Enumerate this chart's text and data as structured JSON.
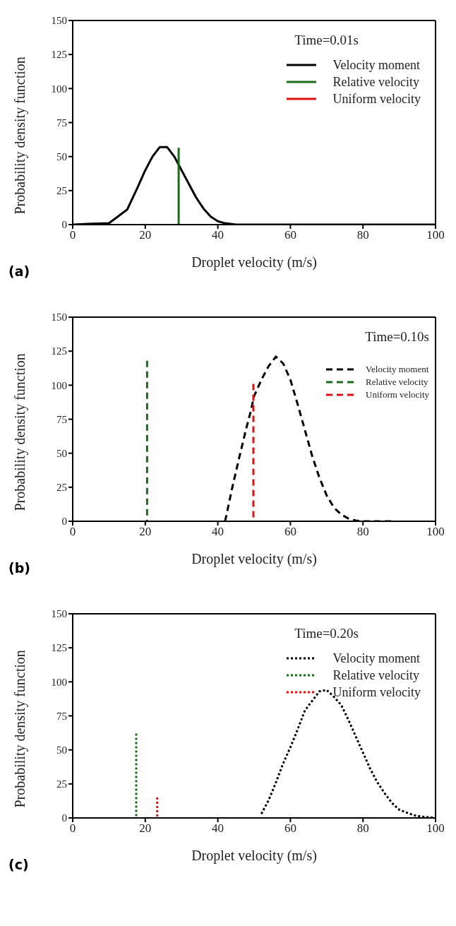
{
  "chart_data": [
    {
      "type": "line",
      "xlabel": "Droplet velocity (m/s)",
      "ylabel": "Probability density function",
      "xlim": [
        0,
        100
      ],
      "xticks": [
        0,
        20,
        40,
        60,
        80,
        100
      ],
      "ylim": [
        0,
        150
      ],
      "yticks": [
        0,
        25,
        50,
        75,
        100,
        125,
        150
      ],
      "grid": false,
      "legend": "top right",
      "marker": "none",
      "line_style": "solid",
      "annotations": [
        "Time=0.01s",
        "(a)"
      ],
      "series": [
        {
          "name": "Velocity moment",
          "color": "#000000",
          "x": [
            0,
            4,
            10,
            15,
            18,
            20,
            22,
            24,
            26,
            28,
            30,
            32,
            34,
            36,
            38,
            40,
            42,
            45,
            100
          ],
          "values": [
            0,
            0.5,
            1,
            11,
            28,
            40,
            50,
            57,
            57,
            50,
            40,
            30,
            20,
            12,
            6,
            2.5,
            1,
            0,
            0
          ]
        },
        {
          "name": "Relative velocity",
          "color": "#1a6b1a",
          "x": [
            29.2,
            29.2
          ],
          "values": [
            56.5,
            0
          ]
        },
        {
          "name": "Uniform velocity",
          "color": "#e01010"
        }
      ]
    },
    {
      "type": "line",
      "xlabel": "Droplet velocity (m/s)",
      "ylabel": "Probability density function",
      "xlim": [
        0,
        100
      ],
      "xticks": [
        0,
        20,
        40,
        60,
        80,
        100
      ],
      "ylim": [
        0,
        150
      ],
      "yticks": [
        0,
        25,
        50,
        75,
        100,
        125,
        150
      ],
      "grid": false,
      "legend": "top right",
      "marker": "none",
      "line_style": "dashed",
      "annotations": [
        "Time=0.10s",
        "(b)"
      ],
      "series": [
        {
          "name": "Velocity moment",
          "color": "#000000",
          "x": [
            42,
            44,
            46,
            48,
            49,
            50,
            52,
            54,
            56,
            58,
            60,
            62,
            64,
            66,
            68,
            70,
            72,
            74,
            76,
            78,
            80,
            88
          ],
          "values": [
            0,
            25,
            48,
            70,
            80,
            92,
            104,
            114,
            121,
            116,
            104,
            86,
            67,
            48,
            32,
            19,
            10,
            5,
            2,
            0.5,
            0,
            0
          ]
        },
        {
          "name": "Relative velocity",
          "color": "#1a6b1a",
          "x": [
            20.5,
            20.5
          ],
          "values": [
            118,
            0
          ]
        },
        {
          "name": "Uniform velocity",
          "color": "#e01010",
          "x": [
            49.8,
            49.8
          ],
          "values": [
            101,
            0
          ]
        }
      ]
    },
    {
      "type": "line",
      "xlabel": "Droplet velocity (m/s)",
      "ylabel": "Probability density function",
      "xlim": [
        0,
        100
      ],
      "xticks": [
        0,
        20,
        40,
        60,
        80,
        100
      ],
      "ylim": [
        0,
        150
      ],
      "yticks": [
        0,
        25,
        50,
        75,
        100,
        125,
        150
      ],
      "grid": false,
      "legend": "top right",
      "marker": "none",
      "line_style": "dotted",
      "annotations": [
        "Time=0.20s",
        "(c)"
      ],
      "series": [
        {
          "name": "Velocity moment",
          "color": "#000000",
          "x": [
            52,
            54,
            56,
            58,
            60,
            62,
            64,
            66,
            68,
            70,
            72,
            74,
            76,
            78,
            80,
            82,
            84,
            86,
            88,
            90,
            92,
            94,
            96,
            98,
            100
          ],
          "values": [
            3,
            13,
            26,
            40,
            52,
            65,
            79,
            86,
            93,
            94,
            89,
            83,
            72,
            60,
            48,
            36,
            26,
            18,
            11,
            6,
            4,
            2,
            1,
            0.5,
            0
          ]
        },
        {
          "name": "Relative velocity",
          "color": "#1a6b1a",
          "x": [
            17.5,
            17.5
          ],
          "values": [
            62,
            0
          ]
        },
        {
          "name": "Uniform velocity",
          "color": "#e01010",
          "x": [
            23.3,
            23.3
          ],
          "values": [
            15,
            0
          ]
        }
      ]
    }
  ]
}
